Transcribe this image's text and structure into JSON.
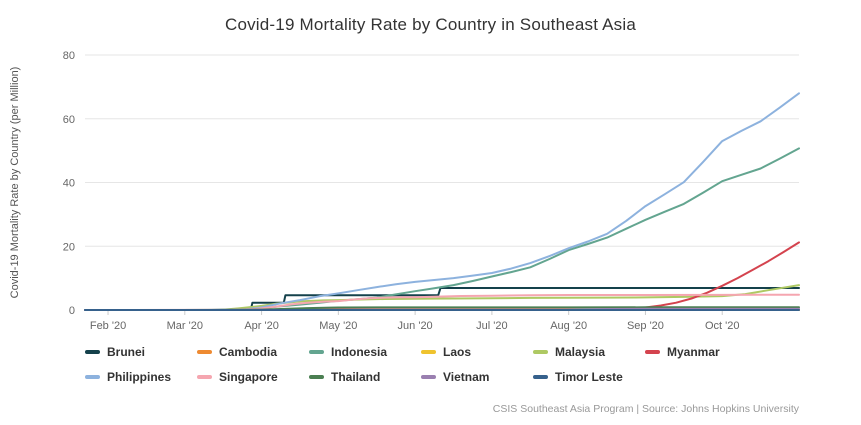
{
  "title": "Covid-19 Mortality Rate by Country in Southeast Asia",
  "footer": "CSIS Southeast Asia Program | Source: Johns Hopkins University",
  "chart_data": {
    "type": "line",
    "title": "Covid-19 Mortality Rate by Country in Southeast Asia",
    "xlabel": "",
    "ylabel": "Covid-19 Mortality Rate by Country (per Million)",
    "x_unit": "months since Feb 1 2020",
    "x_range": [
      -0.3,
      9
    ],
    "ylim": [
      0,
      80
    ],
    "y_ticks": [
      0,
      20,
      40,
      60,
      80
    ],
    "x_tick_positions": [
      0,
      1,
      2,
      3,
      4,
      5,
      6,
      7,
      8
    ],
    "x_tick_labels": [
      "Feb '20",
      "Mar '20",
      "Apr '20",
      "May '20",
      "Jun '20",
      "Jul '20",
      "Aug '20",
      "Sep '20",
      "Oct '20"
    ],
    "grid": "horizontal",
    "legend_position": "bottom-left",
    "series": [
      {
        "name": "Brunei",
        "color": "#14414b",
        "points": [
          [
            -0.3,
            0
          ],
          [
            1.86,
            0
          ],
          [
            1.88,
            2.3
          ],
          [
            2.29,
            2.3
          ],
          [
            2.31,
            4.6
          ],
          [
            4.3,
            4.6
          ],
          [
            4.33,
            6.9
          ],
          [
            9,
            6.9
          ]
        ]
      },
      {
        "name": "Cambodia",
        "color": "#ee8a31",
        "points": [
          [
            -0.3,
            0
          ],
          [
            9,
            0
          ]
        ]
      },
      {
        "name": "Indonesia",
        "color": "#63a590",
        "points": [
          [
            -0.3,
            0
          ],
          [
            1.35,
            0.01
          ],
          [
            1.6,
            0.15
          ],
          [
            1.8,
            0.33
          ],
          [
            2,
            0.57
          ],
          [
            2.25,
            1.2
          ],
          [
            2.5,
            1.68
          ],
          [
            2.75,
            2.3
          ],
          [
            3,
            2.9
          ],
          [
            3.25,
            3.4
          ],
          [
            3.5,
            3.9
          ],
          [
            3.75,
            4.9
          ],
          [
            4,
            5.9
          ],
          [
            4.25,
            6.8
          ],
          [
            4.5,
            7.8
          ],
          [
            4.75,
            9.1
          ],
          [
            5,
            10.5
          ],
          [
            5.25,
            11.9
          ],
          [
            5.5,
            13.4
          ],
          [
            5.75,
            16
          ],
          [
            6,
            18.8
          ],
          [
            6.25,
            20.7
          ],
          [
            6.5,
            22.7
          ],
          [
            6.75,
            25.5
          ],
          [
            7,
            28.3
          ],
          [
            7.25,
            30.8
          ],
          [
            7.5,
            33.3
          ],
          [
            7.75,
            36.8
          ],
          [
            8,
            40.4
          ],
          [
            8.25,
            42.4
          ],
          [
            8.5,
            44.4
          ],
          [
            8.75,
            47.5
          ],
          [
            9,
            50.7
          ]
        ]
      },
      {
        "name": "Laos",
        "color": "#efc32e",
        "points": [
          [
            -0.3,
            0
          ],
          [
            9,
            0
          ]
        ]
      },
      {
        "name": "Malaysia",
        "color": "#aec963",
        "points": [
          [
            -0.3,
            0
          ],
          [
            1.45,
            0.01
          ],
          [
            1.7,
            0.5
          ],
          [
            1.9,
            1
          ],
          [
            2,
            1.3
          ],
          [
            2.2,
            2
          ],
          [
            2.5,
            2.7
          ],
          [
            2.8,
            3
          ],
          [
            3,
            3.1
          ],
          [
            3.3,
            3.3
          ],
          [
            3.6,
            3.45
          ],
          [
            4,
            3.5
          ],
          [
            4.5,
            3.6
          ],
          [
            5,
            3.7
          ],
          [
            5.5,
            3.8
          ],
          [
            6,
            3.85
          ],
          [
            6.5,
            3.9
          ],
          [
            7,
            3.95
          ],
          [
            7.5,
            4.1
          ],
          [
            8,
            4.35
          ],
          [
            8.3,
            5
          ],
          [
            8.6,
            6.2
          ],
          [
            9,
            7.8
          ]
        ]
      },
      {
        "name": "Myanmar",
        "color": "#d4434e",
        "points": [
          [
            -0.3,
            0
          ],
          [
            1.9,
            0.02
          ],
          [
            2.05,
            0.06
          ],
          [
            2.3,
            0.09
          ],
          [
            2.6,
            0.11
          ],
          [
            6,
            0.11
          ],
          [
            6.6,
            0.13
          ],
          [
            6.9,
            0.3
          ],
          [
            7,
            0.77
          ],
          [
            7.2,
            1.4
          ],
          [
            7.4,
            2.3
          ],
          [
            7.6,
            3.6
          ],
          [
            7.8,
            5.4
          ],
          [
            8,
            7.6
          ],
          [
            8.2,
            10
          ],
          [
            8.4,
            12.6
          ],
          [
            8.6,
            15.3
          ],
          [
            8.8,
            18.2
          ],
          [
            9,
            21.2
          ]
        ]
      },
      {
        "name": "Philippines",
        "color": "#8db2de",
        "points": [
          [
            -0.3,
            0
          ],
          [
            1.3,
            0.01
          ],
          [
            1.6,
            0.08
          ],
          [
            1.8,
            0.25
          ],
          [
            2,
            0.81
          ],
          [
            2.25,
            2.1
          ],
          [
            2.5,
            3.1
          ],
          [
            2.75,
            4.3
          ],
          [
            3,
            5.2
          ],
          [
            3.25,
            6.2
          ],
          [
            3.5,
            7.2
          ],
          [
            3.75,
            8.1
          ],
          [
            4,
            8.8
          ],
          [
            4.25,
            9.4
          ],
          [
            4.5,
            10
          ],
          [
            4.75,
            10.8
          ],
          [
            5,
            11.6
          ],
          [
            5.25,
            13
          ],
          [
            5.5,
            14.7
          ],
          [
            5.75,
            16.9
          ],
          [
            6,
            19.4
          ],
          [
            6.25,
            21.5
          ],
          [
            6.5,
            23.9
          ],
          [
            6.75,
            28
          ],
          [
            7,
            32.6
          ],
          [
            7.25,
            36.3
          ],
          [
            7.5,
            40.1
          ],
          [
            7.75,
            46.4
          ],
          [
            8,
            53
          ],
          [
            8.25,
            56.2
          ],
          [
            8.5,
            59.2
          ],
          [
            8.75,
            63.5
          ],
          [
            9,
            68
          ]
        ]
      },
      {
        "name": "Singapore",
        "color": "#f5a6b0",
        "points": [
          [
            -0.3,
            0
          ],
          [
            1.62,
            0.02
          ],
          [
            1.8,
            0.2
          ],
          [
            2,
            0.5
          ],
          [
            2.2,
            1.1
          ],
          [
            2.4,
            1.8
          ],
          [
            2.6,
            2.3
          ],
          [
            2.8,
            2.6
          ],
          [
            3,
            2.8
          ],
          [
            3.2,
            3.3
          ],
          [
            3.4,
            3.7
          ],
          [
            3.6,
            3.9
          ],
          [
            3.8,
            4
          ],
          [
            4,
            4
          ],
          [
            4.3,
            4.2
          ],
          [
            4.6,
            4.4
          ],
          [
            5,
            4.5
          ],
          [
            5.5,
            4.6
          ],
          [
            6,
            4.7
          ],
          [
            7,
            4.7
          ],
          [
            8,
            4.75
          ],
          [
            9,
            4.8
          ]
        ]
      },
      {
        "name": "Thailand",
        "color": "#4b7f52",
        "points": [
          [
            -0.3,
            0
          ],
          [
            0.95,
            0.01
          ],
          [
            1.5,
            0.03
          ],
          [
            1.8,
            0.08
          ],
          [
            2,
            0.14
          ],
          [
            2.3,
            0.35
          ],
          [
            2.6,
            0.6
          ],
          [
            2.9,
            0.75
          ],
          [
            3,
            0.77
          ],
          [
            3.5,
            0.8
          ],
          [
            4,
            0.81
          ],
          [
            5,
            0.83
          ],
          [
            6,
            0.83
          ],
          [
            7,
            0.84
          ],
          [
            8,
            0.84
          ],
          [
            9,
            0.85
          ]
        ]
      },
      {
        "name": "Vietnam",
        "color": "#9a7fb0",
        "points": [
          [
            -0.3,
            0
          ],
          [
            5.97,
            0
          ],
          [
            6.05,
            0.05
          ],
          [
            6.2,
            0.15
          ],
          [
            6.5,
            0.3
          ],
          [
            6.9,
            0.35
          ],
          [
            7.1,
            0.36
          ],
          [
            9,
            0.36
          ]
        ]
      },
      {
        "name": "Timor Leste",
        "color": "#36618c",
        "points": [
          [
            -0.3,
            0
          ],
          [
            9,
            0
          ]
        ]
      }
    ]
  }
}
